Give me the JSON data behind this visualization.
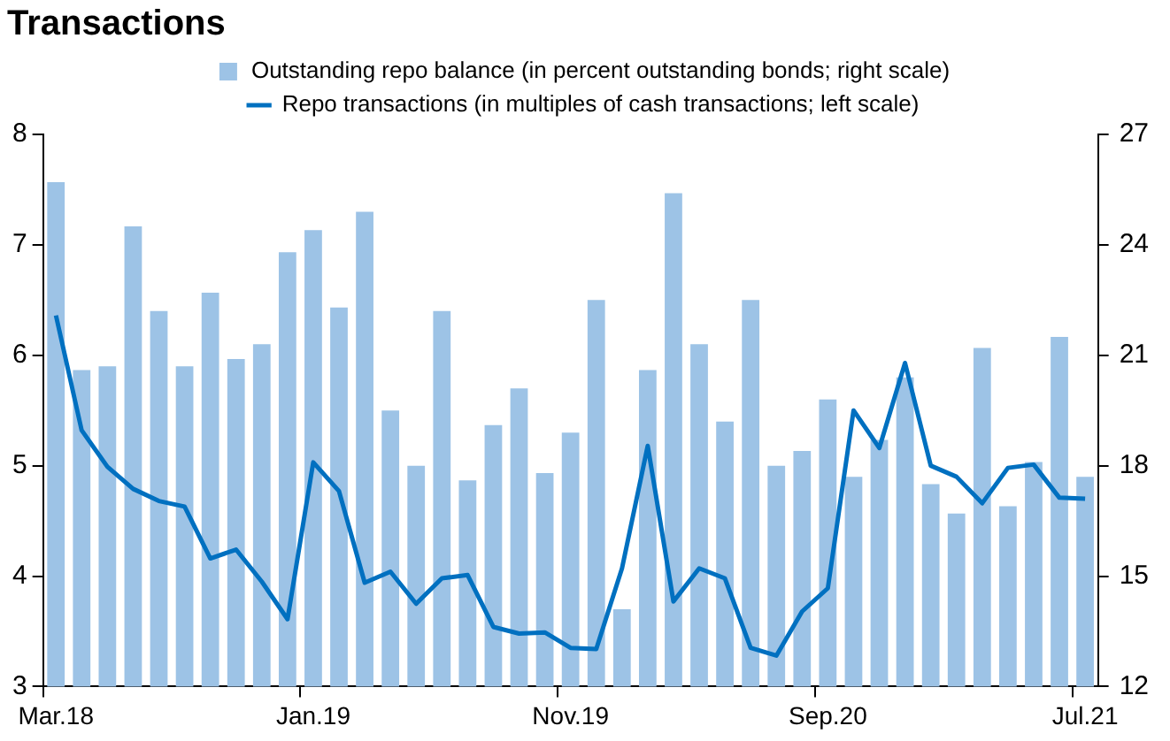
{
  "chart_data": {
    "type": "bar",
    "title": "Transactions",
    "categories": [
      "Mar.18",
      null,
      null,
      null,
      null,
      null,
      null,
      null,
      null,
      null,
      "Jan.19",
      null,
      null,
      null,
      null,
      null,
      null,
      null,
      null,
      null,
      "Nov.19",
      null,
      null,
      null,
      null,
      null,
      null,
      null,
      null,
      null,
      "Sep.20",
      null,
      null,
      null,
      null,
      null,
      null,
      null,
      null,
      null,
      "Jul.21"
    ],
    "series": [
      {
        "name": "Outstanding repo balance (in percent outstanding bonds; right scale)",
        "axis": "y2",
        "color": "#9dc3e6",
        "values": [
          25.7,
          20.6,
          20.7,
          24.5,
          22.2,
          20.7,
          22.7,
          20.9,
          21.3,
          23.8,
          24.4,
          22.3,
          24.9,
          19.5,
          18.0,
          22.2,
          17.6,
          19.1,
          20.1,
          17.8,
          18.9,
          22.5,
          14.1,
          20.6,
          25.4,
          21.3,
          19.2,
          22.5,
          18.0,
          18.4,
          19.8,
          17.7,
          18.7,
          20.4,
          17.5,
          16.7,
          21.2,
          16.9,
          18.1,
          21.5,
          17.7
        ]
      },
      {
        "name": "Repo transactions (in multiples of cash transactions; left scale)",
        "type": "line",
        "color": "#0070c0",
        "values": [
          6.36,
          5.32,
          4.99,
          4.79,
          4.68,
          4.63,
          4.16,
          4.24,
          3.95,
          3.61,
          5.03,
          4.77,
          3.94,
          4.04,
          3.75,
          3.98,
          4.01,
          3.54,
          3.48,
          3.49,
          3.35,
          3.34,
          4.07,
          5.18,
          3.77,
          4.07,
          3.98,
          3.35,
          3.28,
          3.68,
          3.89,
          5.5,
          5.16,
          5.93,
          5.0,
          4.9,
          4.66,
          4.98,
          5.01,
          4.71,
          4.7
        ]
      }
    ],
    "ylim": [
      3,
      8
    ],
    "yticks": [
      3,
      4,
      5,
      6,
      7,
      8
    ],
    "y2lim": [
      12,
      27
    ],
    "y2ticks": [
      12,
      15,
      18,
      21,
      24,
      27
    ],
    "grid": false,
    "legend": "top",
    "marker": "none",
    "line_style": "solid"
  }
}
